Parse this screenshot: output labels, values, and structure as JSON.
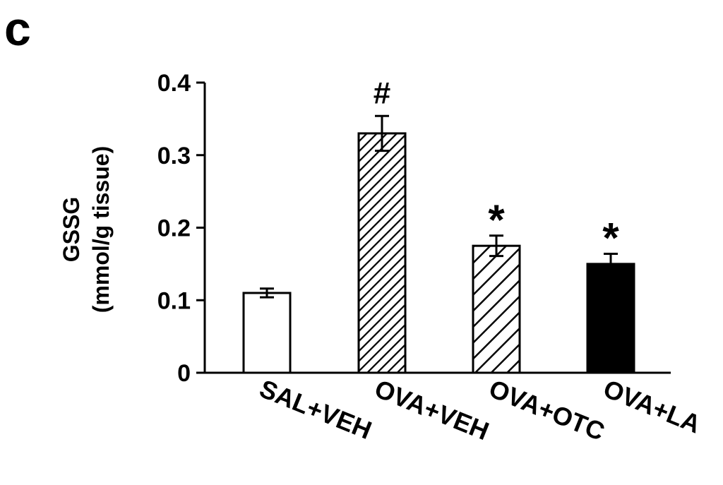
{
  "chart_data": {
    "type": "bar",
    "panel_label": "c",
    "ylabel_line1": "GSSG",
    "ylabel_line2": "(mmol/g tissue)",
    "xlabel": "",
    "ylim": [
      0,
      0.4
    ],
    "yticks": [
      0,
      0.1,
      0.2,
      0.3,
      0.4
    ],
    "ytick_labels": [
      "0",
      "0.1",
      "0.2",
      "0.3",
      "0.4"
    ],
    "categories": [
      "SAL+VEH",
      "OVA+VEH",
      "OVA+OTC",
      "OVA+LA"
    ],
    "values": [
      0.11,
      0.33,
      0.175,
      0.15
    ],
    "errors": [
      0.006,
      0.024,
      0.014,
      0.014
    ],
    "annotations": [
      "",
      "#",
      "*",
      "*"
    ],
    "fills": [
      "white",
      "dense-hatch",
      "sparse-hatch",
      "solid-black"
    ],
    "colors": {
      "axis": "#000000",
      "bar_edge": "#000000",
      "solid": "#000000",
      "background": "#ffffff"
    }
  }
}
